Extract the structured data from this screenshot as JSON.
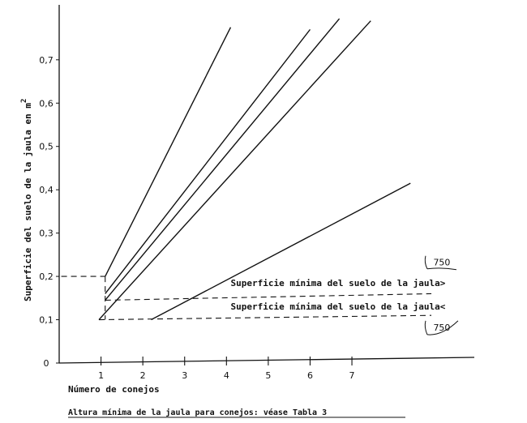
{
  "chart_data": {
    "type": "line",
    "title": "",
    "xlabel": "Número de conejos",
    "ylabel": "Superficie del suelo de la jaula en m",
    "ylabel_superscript": "2",
    "caption": "Altura mínima de la jaula para conejos: véase Tabla 3",
    "xlim": [
      0,
      9.5
    ],
    "ylim": [
      0,
      0.81
    ],
    "x_tick_labels": [
      {
        "x": 1,
        "label": "1"
      },
      {
        "x": 2,
        "label": "2"
      },
      {
        "x": 3,
        "label": "3"
      },
      {
        "x": 4,
        "label": "4"
      },
      {
        "x": 5,
        "label": "5"
      },
      {
        "x": 6,
        "label": "6"
      },
      {
        "x": 7,
        "label": "7"
      }
    ],
    "y_tick_labels": [
      {
        "y": 0,
        "label": "0"
      },
      {
        "y": 0.1,
        "label": "0,1"
      },
      {
        "y": 0.2,
        "label": "0,2"
      },
      {
        "y": 0.3,
        "label": "0,3"
      },
      {
        "y": 0.4,
        "label": "0,4"
      },
      {
        "y": 0.5,
        "label": "0,5"
      },
      {
        "y": 0.6,
        "label": "0,6"
      },
      {
        "y": 0.7,
        "label": "0,7"
      }
    ],
    "grid": false,
    "series": [
      {
        "points": [
          [
            1.1,
            0.2
          ],
          [
            4.1,
            0.775
          ]
        ]
      },
      {
        "points": [
          [
            1.1,
            0.16
          ],
          [
            6.0,
            0.77
          ]
        ]
      },
      {
        "points": [
          [
            1.1,
            0.145
          ],
          [
            6.7,
            0.795
          ]
        ]
      },
      {
        "points": [
          [
            0.95,
            0.1
          ],
          [
            7.45,
            0.79
          ]
        ]
      },
      {
        "points": [
          [
            2.2,
            0.1
          ],
          [
            8.4,
            0.415
          ]
        ]
      }
    ],
    "reference_lines": [
      {
        "style": "dashed",
        "from": [
          0.05,
          0.2
        ],
        "to": [
          1.1,
          0.2
        ]
      },
      {
        "style": "dashed",
        "from": [
          1.1,
          0.2
        ],
        "to": [
          1.1,
          0.1
        ]
      },
      {
        "style": "dashed",
        "from": [
          1.1,
          0.145
        ],
        "to": [
          8.9,
          0.16
        ]
      },
      {
        "style": "dashed",
        "from": [
          0.95,
          0.1
        ],
        "to": [
          8.9,
          0.11
        ]
      }
    ],
    "annotations": [
      {
        "text": "Superficie mínima del suelo de la jaula>",
        "x": 4.1,
        "y": 0.178
      },
      {
        "text": "Superficie mínima del suelo de la jaula<",
        "x": 4.1,
        "y": 0.123
      },
      {
        "text": "750",
        "x": 9.15,
        "y": 0.225
      },
      {
        "text": "750",
        "x": 9.15,
        "y": 0.075
      }
    ]
  }
}
